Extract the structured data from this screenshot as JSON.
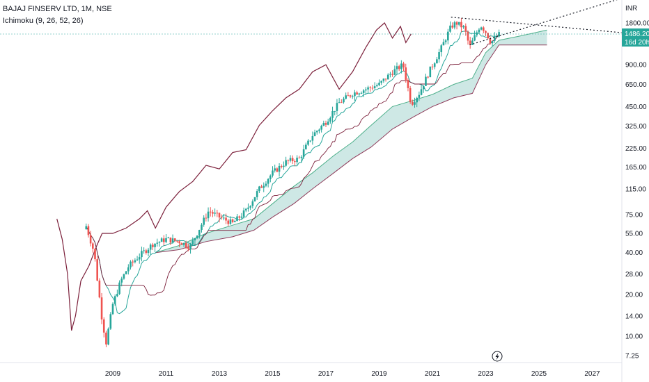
{
  "header": {
    "symbol_line": "BAJAJ FINSERV LTD, 1M, NSE",
    "indicator_line": "Ichimoku (9, 26, 52, 26)"
  },
  "axis": {
    "currency": "INR",
    "price_label": "1486.20",
    "countdown_label": "16d 20h"
  },
  "colors": {
    "up": "#26a69a",
    "down": "#ef5350",
    "candle_body_up": "#26a69a",
    "candle_body_down": "#ef5350",
    "conversion": "#2962ff",
    "lagging": "#7b1f3a",
    "cloud_fill": "#a5d6cf",
    "cloud_edge_a": "#4caf8a",
    "cloud_edge_b": "#8e3b5a",
    "trendline": "#131722",
    "price_tag_bg": "#26a69a"
  },
  "icons": {
    "flash": "lightning-bolt-icon"
  },
  "chart_data": {
    "type": "candlestick",
    "title": "BAJAJ FINSERV LTD, 1M, NSE",
    "scale": "log",
    "y_ticks": [
      "1800.00",
      "900.00",
      "650.00",
      "450.00",
      "325.00",
      "225.00",
      "165.00",
      "115.00",
      "75.00",
      "55.00",
      "40.00",
      "28.00",
      "20.00",
      "14.00",
      "10.00",
      "7.25"
    ],
    "x_ticks": [
      "2009",
      "2011",
      "2013",
      "2015",
      "2017",
      "2019",
      "2021",
      "2023",
      "2025",
      "2027"
    ],
    "last_price": 1486.2,
    "ohlc_keypoints": [
      {
        "t": 2008.0,
        "p": 62
      },
      {
        "t": 2008.3,
        "p": 40
      },
      {
        "t": 2008.6,
        "p": 13
      },
      {
        "t": 2008.75,
        "p": 9
      },
      {
        "t": 2009.0,
        "p": 17
      },
      {
        "t": 2009.3,
        "p": 25
      },
      {
        "t": 2009.6,
        "p": 32
      },
      {
        "t": 2010.0,
        "p": 38
      },
      {
        "t": 2010.5,
        "p": 46
      },
      {
        "t": 2011.0,
        "p": 50
      },
      {
        "t": 2011.5,
        "p": 48
      },
      {
        "t": 2011.9,
        "p": 44
      },
      {
        "t": 2012.3,
        "p": 62
      },
      {
        "t": 2012.6,
        "p": 80
      },
      {
        "t": 2013.0,
        "p": 72
      },
      {
        "t": 2013.5,
        "p": 65
      },
      {
        "t": 2014.0,
        "p": 80
      },
      {
        "t": 2014.5,
        "p": 115
      },
      {
        "t": 2015.0,
        "p": 150
      },
      {
        "t": 2015.5,
        "p": 180
      },
      {
        "t": 2016.0,
        "p": 190
      },
      {
        "t": 2016.5,
        "p": 280
      },
      {
        "t": 2017.0,
        "p": 350
      },
      {
        "t": 2017.5,
        "p": 480
      },
      {
        "t": 2018.0,
        "p": 560
      },
      {
        "t": 2018.5,
        "p": 600
      },
      {
        "t": 2019.0,
        "p": 650
      },
      {
        "t": 2019.5,
        "p": 800
      },
      {
        "t": 2019.9,
        "p": 900
      },
      {
        "t": 2020.2,
        "p": 470
      },
      {
        "t": 2020.5,
        "p": 560
      },
      {
        "t": 2020.9,
        "p": 820
      },
      {
        "t": 2021.3,
        "p": 1150
      },
      {
        "t": 2021.7,
        "p": 1700
      },
      {
        "t": 2021.9,
        "p": 1800
      },
      {
        "t": 2022.2,
        "p": 1650
      },
      {
        "t": 2022.4,
        "p": 1200
      },
      {
        "t": 2022.6,
        "p": 1450
      },
      {
        "t": 2022.8,
        "p": 1750
      },
      {
        "t": 2023.0,
        "p": 1550
      },
      {
        "t": 2023.2,
        "p": 1300
      },
      {
        "t": 2023.35,
        "p": 1400
      },
      {
        "t": 2023.5,
        "p": 1486
      }
    ],
    "lagging_span": [
      {
        "t": 2006.9,
        "p": 70
      },
      {
        "t": 2007.1,
        "p": 50
      },
      {
        "t": 2007.3,
        "p": 28
      },
      {
        "t": 2007.45,
        "p": 11
      },
      {
        "t": 2007.6,
        "p": 14
      },
      {
        "t": 2007.8,
        "p": 25
      },
      {
        "t": 2008.1,
        "p": 32
      },
      {
        "t": 2008.4,
        "p": 45
      },
      {
        "t": 2008.6,
        "p": 55
      },
      {
        "t": 2009.0,
        "p": 55
      },
      {
        "t": 2009.5,
        "p": 60
      },
      {
        "t": 2010.0,
        "p": 70
      },
      {
        "t": 2010.3,
        "p": 80
      },
      {
        "t": 2010.6,
        "p": 60
      },
      {
        "t": 2011.0,
        "p": 85
      },
      {
        "t": 2011.5,
        "p": 110
      },
      {
        "t": 2012.0,
        "p": 130
      },
      {
        "t": 2012.5,
        "p": 170
      },
      {
        "t": 2013.0,
        "p": 160
      },
      {
        "t": 2013.5,
        "p": 210
      },
      {
        "t": 2014.0,
        "p": 220
      },
      {
        "t": 2014.5,
        "p": 330
      },
      {
        "t": 2015.0,
        "p": 420
      },
      {
        "t": 2015.5,
        "p": 520
      },
      {
        "t": 2016.0,
        "p": 600
      },
      {
        "t": 2016.5,
        "p": 800
      },
      {
        "t": 2017.0,
        "p": 900
      },
      {
        "t": 2017.5,
        "p": 600
      },
      {
        "t": 2018.0,
        "p": 800
      },
      {
        "t": 2018.5,
        "p": 1200
      },
      {
        "t": 2018.9,
        "p": 1600
      },
      {
        "t": 2019.2,
        "p": 1800
      },
      {
        "t": 2019.5,
        "p": 1400
      },
      {
        "t": 2019.8,
        "p": 1700
      },
      {
        "t": 2020.0,
        "p": 1300
      },
      {
        "t": 2020.2,
        "p": 1500
      }
    ],
    "cloud_span_a": [
      {
        "t": 2010.6,
        "p": 40
      },
      {
        "t": 2011.5,
        "p": 45
      },
      {
        "t": 2012.5,
        "p": 55
      },
      {
        "t": 2013.5,
        "p": 63
      },
      {
        "t": 2014.3,
        "p": 70
      },
      {
        "t": 2015.0,
        "p": 90
      },
      {
        "t": 2015.8,
        "p": 120
      },
      {
        "t": 2016.5,
        "p": 150
      },
      {
        "t": 2017.3,
        "p": 200
      },
      {
        "t": 2018.0,
        "p": 250
      },
      {
        "t": 2018.7,
        "p": 330
      },
      {
        "t": 2019.5,
        "p": 450
      },
      {
        "t": 2020.3,
        "p": 500
      },
      {
        "t": 2021.0,
        "p": 550
      },
      {
        "t": 2021.8,
        "p": 650
      },
      {
        "t": 2022.5,
        "p": 720
      },
      {
        "t": 2023.0,
        "p": 1100
      },
      {
        "t": 2023.5,
        "p": 1350
      },
      {
        "t": 2024.3,
        "p": 1450
      },
      {
        "t": 2025.3,
        "p": 1600
      }
    ],
    "cloud_span_b": [
      {
        "t": 2010.6,
        "p": 40
      },
      {
        "t": 2011.5,
        "p": 42
      },
      {
        "t": 2012.5,
        "p": 48
      },
      {
        "t": 2013.5,
        "p": 52
      },
      {
        "t": 2014.3,
        "p": 58
      },
      {
        "t": 2015.0,
        "p": 72
      },
      {
        "t": 2015.8,
        "p": 90
      },
      {
        "t": 2016.5,
        "p": 115
      },
      {
        "t": 2017.3,
        "p": 150
      },
      {
        "t": 2018.0,
        "p": 190
      },
      {
        "t": 2018.7,
        "p": 230
      },
      {
        "t": 2019.5,
        "p": 310
      },
      {
        "t": 2020.3,
        "p": 380
      },
      {
        "t": 2021.0,
        "p": 450
      },
      {
        "t": 2021.8,
        "p": 520
      },
      {
        "t": 2022.5,
        "p": 560
      },
      {
        "t": 2023.0,
        "p": 900
      },
      {
        "t": 2023.5,
        "p": 1250
      },
      {
        "t": 2024.3,
        "p": 1250
      },
      {
        "t": 2025.3,
        "p": 1250
      }
    ],
    "trendlines": [
      {
        "from": {
          "t": 2021.7,
          "p": 1980
        },
        "to": {
          "t": 2030.0,
          "p": 1420
        }
      },
      {
        "from": {
          "t": 2022.4,
          "p": 1250
        },
        "to": {
          "t": 2030.0,
          "p": 3500
        }
      }
    ]
  }
}
